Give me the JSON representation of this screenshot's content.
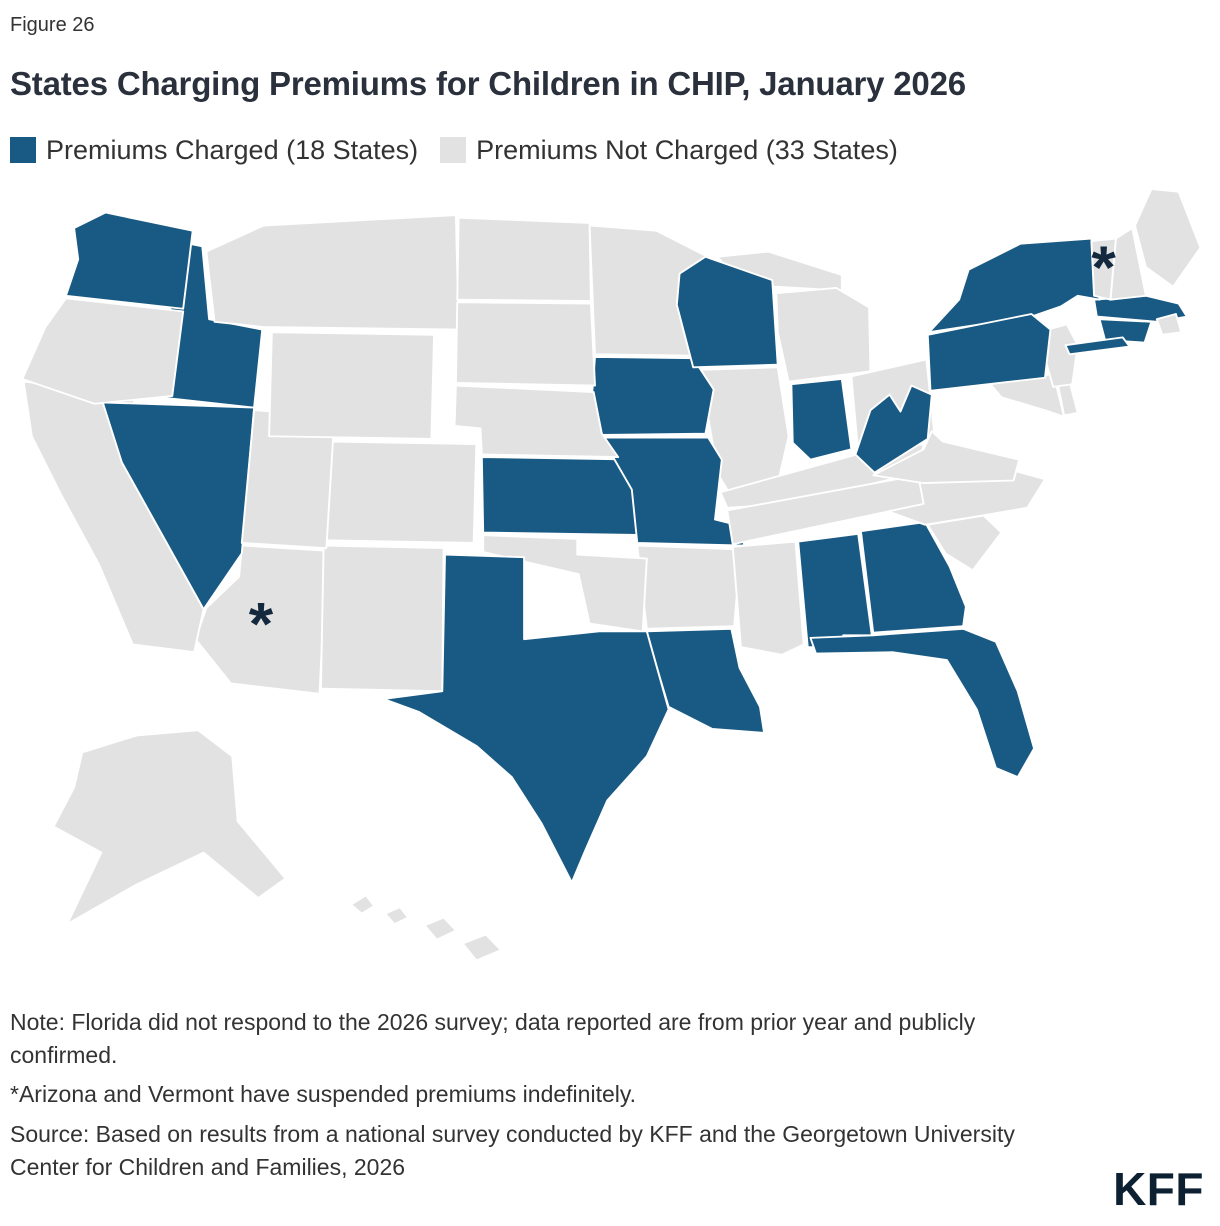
{
  "figure_label": "Figure 26",
  "title": "States Charging Premiums for Children in CHIP, January 2026",
  "legend": {
    "charged": {
      "label": "Premiums Charged (18 States)",
      "color": "#195a84"
    },
    "not_charged": {
      "label": "Premiums Not Charged (33 States)",
      "color": "#e2e2e2"
    }
  },
  "asterisk_symbol": "*",
  "colors": {
    "asterisk": "#14293d",
    "state_border": "#ffffff",
    "title_text": "#2a313c",
    "logo_text": "#0d2032"
  },
  "notes": {
    "note_florida": "Note: Florida did not respond to the 2026 survey; data reported are from prior year and publicly confirmed.",
    "note_asterisk": "*Arizona and Vermont have suspended premiums indefinitely.",
    "source": "Source: Based on results from a national survey conducted by KFF and the Georgetown University Center for Children and Families, 2026"
  },
  "logo_text": "KFF",
  "chart_data": {
    "type": "choropleth",
    "title": "States Charging Premiums for Children in CHIP, January 2026",
    "legend": [
      "Premiums Charged (18 States)",
      "Premiums Not Charged (33 States)"
    ],
    "counts": {
      "premiums_charged": 18,
      "premiums_not_charged": 33
    },
    "suspended_premium_states": [
      "Arizona",
      "Vermont"
    ],
    "states": [
      {
        "abbr": "AL",
        "name": "Alabama",
        "status": "charged"
      },
      {
        "abbr": "AK",
        "name": "Alaska",
        "status": "not_charged"
      },
      {
        "abbr": "AZ",
        "name": "Arizona",
        "status": "not_charged",
        "suspended": true
      },
      {
        "abbr": "AR",
        "name": "Arkansas",
        "status": "not_charged"
      },
      {
        "abbr": "CA",
        "name": "California",
        "status": "not_charged"
      },
      {
        "abbr": "CO",
        "name": "Colorado",
        "status": "not_charged"
      },
      {
        "abbr": "CT",
        "name": "Connecticut",
        "status": "charged"
      },
      {
        "abbr": "DE",
        "name": "Delaware",
        "status": "not_charged"
      },
      {
        "abbr": "DC",
        "name": "District of Columbia",
        "status": "not_charged"
      },
      {
        "abbr": "FL",
        "name": "Florida",
        "status": "charged"
      },
      {
        "abbr": "GA",
        "name": "Georgia",
        "status": "charged"
      },
      {
        "abbr": "HI",
        "name": "Hawaii",
        "status": "not_charged"
      },
      {
        "abbr": "ID",
        "name": "Idaho",
        "status": "charged"
      },
      {
        "abbr": "IL",
        "name": "Illinois",
        "status": "not_charged"
      },
      {
        "abbr": "IN",
        "name": "Indiana",
        "status": "charged"
      },
      {
        "abbr": "IA",
        "name": "Iowa",
        "status": "charged"
      },
      {
        "abbr": "KS",
        "name": "Kansas",
        "status": "charged"
      },
      {
        "abbr": "KY",
        "name": "Kentucky",
        "status": "not_charged"
      },
      {
        "abbr": "LA",
        "name": "Louisiana",
        "status": "charged"
      },
      {
        "abbr": "ME",
        "name": "Maine",
        "status": "not_charged"
      },
      {
        "abbr": "MD",
        "name": "Maryland",
        "status": "not_charged"
      },
      {
        "abbr": "MA",
        "name": "Massachusetts",
        "status": "charged"
      },
      {
        "abbr": "MI",
        "name": "Michigan",
        "status": "not_charged"
      },
      {
        "abbr": "MN",
        "name": "Minnesota",
        "status": "not_charged"
      },
      {
        "abbr": "MS",
        "name": "Mississippi",
        "status": "not_charged"
      },
      {
        "abbr": "MO",
        "name": "Missouri",
        "status": "charged"
      },
      {
        "abbr": "MT",
        "name": "Montana",
        "status": "not_charged"
      },
      {
        "abbr": "NE",
        "name": "Nebraska",
        "status": "not_charged"
      },
      {
        "abbr": "NV",
        "name": "Nevada",
        "status": "charged"
      },
      {
        "abbr": "NH",
        "name": "New Hampshire",
        "status": "not_charged"
      },
      {
        "abbr": "NJ",
        "name": "New Jersey",
        "status": "not_charged"
      },
      {
        "abbr": "NM",
        "name": "New Mexico",
        "status": "not_charged"
      },
      {
        "abbr": "NY",
        "name": "New York",
        "status": "charged"
      },
      {
        "abbr": "NC",
        "name": "North Carolina",
        "status": "not_charged"
      },
      {
        "abbr": "ND",
        "name": "North Dakota",
        "status": "not_charged"
      },
      {
        "abbr": "OH",
        "name": "Ohio",
        "status": "not_charged"
      },
      {
        "abbr": "OK",
        "name": "Oklahoma",
        "status": "not_charged"
      },
      {
        "abbr": "OR",
        "name": "Oregon",
        "status": "not_charged"
      },
      {
        "abbr": "PA",
        "name": "Pennsylvania",
        "status": "charged"
      },
      {
        "abbr": "RI",
        "name": "Rhode Island",
        "status": "not_charged"
      },
      {
        "abbr": "SC",
        "name": "South Carolina",
        "status": "not_charged"
      },
      {
        "abbr": "SD",
        "name": "South Dakota",
        "status": "not_charged"
      },
      {
        "abbr": "TN",
        "name": "Tennessee",
        "status": "not_charged"
      },
      {
        "abbr": "TX",
        "name": "Texas",
        "status": "charged"
      },
      {
        "abbr": "UT",
        "name": "Utah",
        "status": "not_charged"
      },
      {
        "abbr": "VT",
        "name": "Vermont",
        "status": "not_charged",
        "suspended": true
      },
      {
        "abbr": "VA",
        "name": "Virginia",
        "status": "not_charged"
      },
      {
        "abbr": "WA",
        "name": "Washington",
        "status": "charged"
      },
      {
        "abbr": "WV",
        "name": "West Virginia",
        "status": "charged"
      },
      {
        "abbr": "WI",
        "name": "Wisconsin",
        "status": "charged"
      },
      {
        "abbr": "WY",
        "name": "Wyoming",
        "status": "not_charged"
      }
    ]
  }
}
